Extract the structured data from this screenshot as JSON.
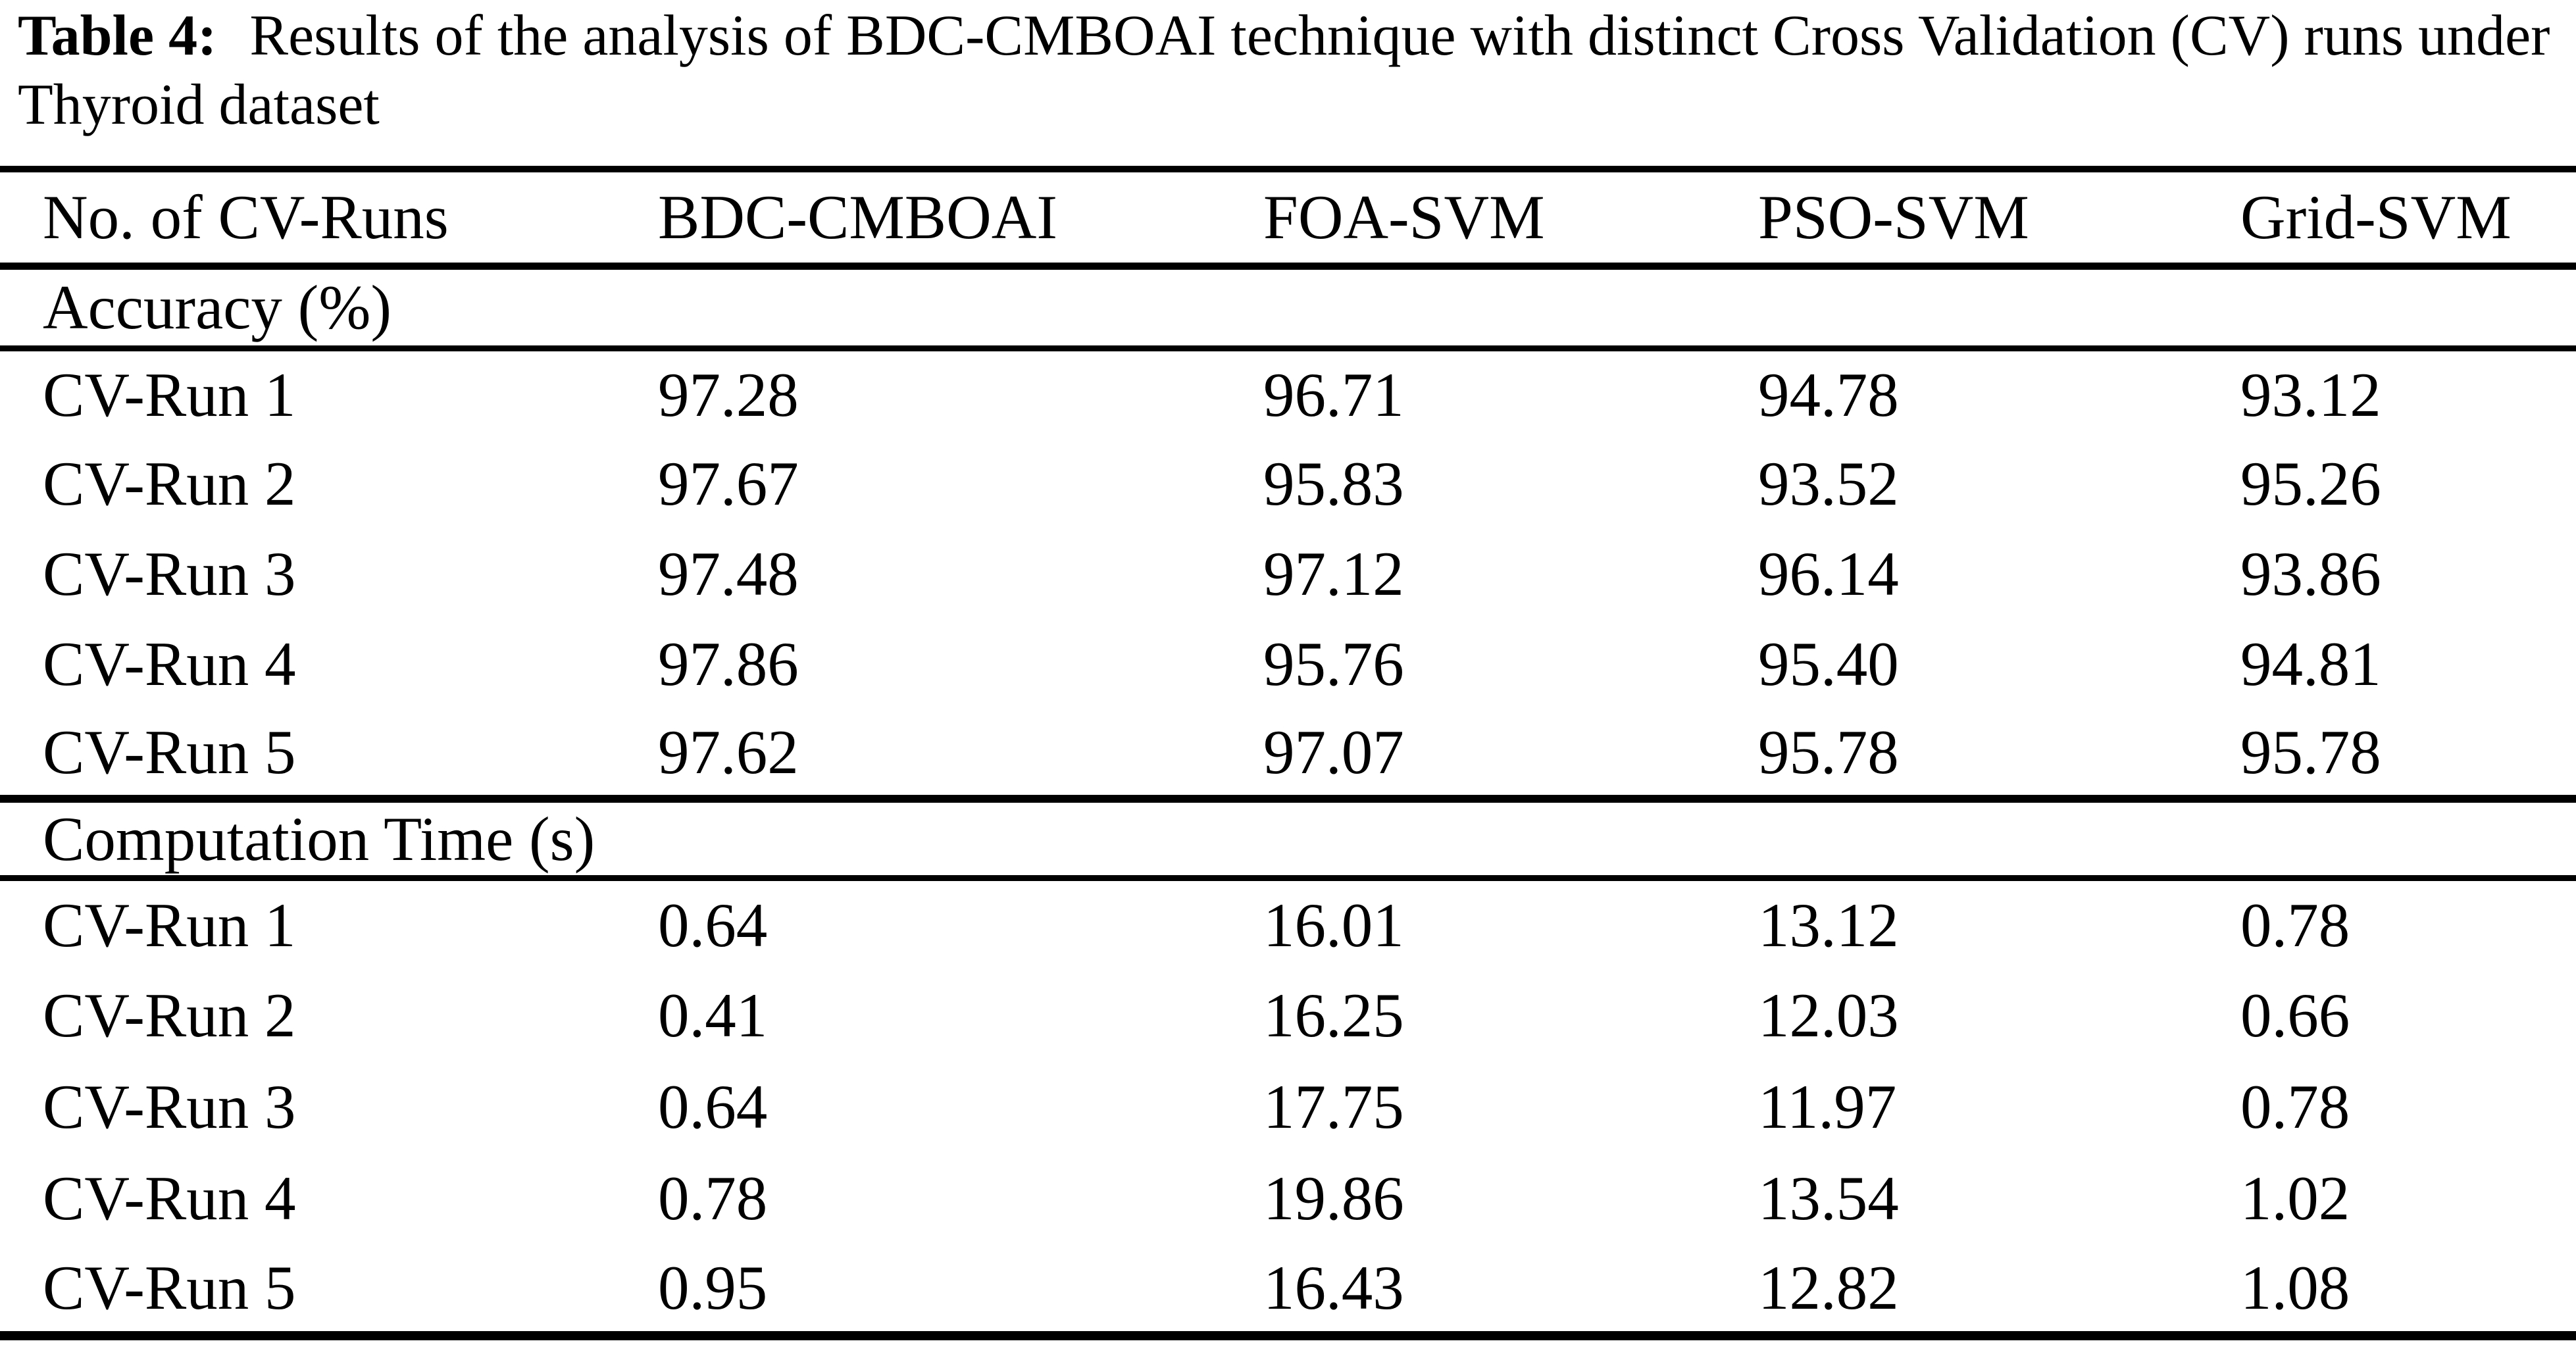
{
  "caption": {
    "label": "Table 4:",
    "text": "Results of the analysis of BDC-CMBOAI technique with distinct Cross Validation (CV) runs under Thyroid dataset"
  },
  "table": {
    "columns": [
      "No. of CV-Runs",
      "BDC-CMBOAI",
      "FOA-SVM",
      "PSO-SVM",
      "Grid-SVM"
    ],
    "sections": [
      {
        "title": "Accuracy (%)",
        "rows": [
          {
            "label": "CV-Run 1",
            "values": [
              "97.28",
              "96.71",
              "94.78",
              "93.12"
            ]
          },
          {
            "label": "CV-Run 2",
            "values": [
              "97.67",
              "95.83",
              "93.52",
              "95.26"
            ]
          },
          {
            "label": "CV-Run 3",
            "values": [
              "97.48",
              "97.12",
              "96.14",
              "93.86"
            ]
          },
          {
            "label": "CV-Run 4",
            "values": [
              "97.86",
              "95.76",
              "95.40",
              "94.81"
            ]
          },
          {
            "label": "CV-Run 5",
            "values": [
              "97.62",
              "97.07",
              "95.78",
              "95.78"
            ]
          }
        ]
      },
      {
        "title": "Computation Time (s)",
        "rows": [
          {
            "label": "CV-Run 1",
            "values": [
              "0.64",
              "16.01",
              "13.12",
              "0.78"
            ]
          },
          {
            "label": "CV-Run 2",
            "values": [
              "0.41",
              "16.25",
              "12.03",
              "0.66"
            ]
          },
          {
            "label": "CV-Run 3",
            "values": [
              "0.64",
              "17.75",
              "11.97",
              "0.78"
            ]
          },
          {
            "label": "CV-Run 4",
            "values": [
              "0.78",
              "19.86",
              "13.54",
              "1.02"
            ]
          },
          {
            "label": "CV-Run 5",
            "values": [
              "0.95",
              "16.43",
              "12.82",
              "1.08"
            ]
          }
        ]
      }
    ]
  }
}
